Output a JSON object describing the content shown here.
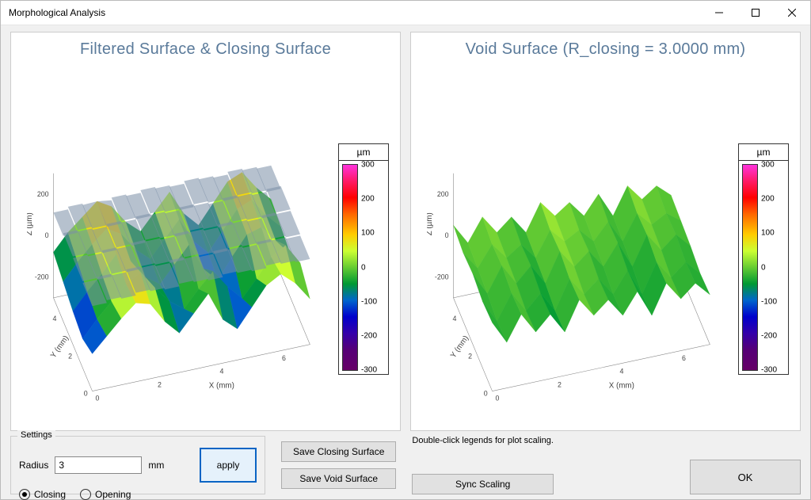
{
  "window": {
    "title": "Morphological Analysis"
  },
  "plots": {
    "left": {
      "title": "Filtered Surface & Closing Surface",
      "xlabel": "X (mm)",
      "ylabel": "Y (mm)",
      "zlabel": "Z (µm)",
      "x_ticks": [
        0,
        2,
        4,
        6
      ],
      "x_range": [
        0,
        7
      ],
      "y_ticks": [
        0,
        2,
        4
      ],
      "y_range": [
        0,
        5
      ],
      "z_ticks": [
        -200,
        0,
        200
      ],
      "z_range": [
        -300,
        300
      ],
      "surface_colors": [
        "#660066",
        "#550077",
        "#3300aa",
        "#0000cc",
        "#0066cc",
        "#009933",
        "#66cc33",
        "#ccff33",
        "#ffcc00",
        "#ff6600",
        "#ff0000",
        "#ff1a66",
        "#ff33dd"
      ],
      "overlay_closing_color": "#7a8ea6",
      "overlay_closing_opacity": 0.55,
      "grid_z_slices": [
        {
          "y": 0,
          "z": [
            -120,
            -50,
            20,
            80,
            60,
            -40,
            -110,
            -30,
            50,
            -90,
            -150,
            -60,
            30,
            70,
            10,
            -80
          ]
        },
        {
          "y": 1,
          "z": [
            -160,
            -80,
            -10,
            60,
            100,
            10,
            -70,
            -120,
            -40,
            30,
            -60,
            -130,
            -50,
            40,
            80,
            -20
          ]
        },
        {
          "y": 2,
          "z": [
            -140,
            -60,
            10,
            90,
            40,
            -50,
            -100,
            -20,
            60,
            -70,
            -140,
            -40,
            50,
            70,
            -10,
            -90
          ]
        },
        {
          "y": 3,
          "z": [
            -110,
            -30,
            40,
            100,
            60,
            -30,
            -90,
            -10,
            70,
            -50,
            -120,
            -30,
            60,
            90,
            0,
            -70
          ]
        },
        {
          "y": 4,
          "z": [
            -80,
            0,
            60,
            120,
            80,
            -10,
            -70,
            10,
            90,
            -30,
            -100,
            -10,
            80,
            110,
            20,
            -50
          ]
        }
      ]
    },
    "right": {
      "title": "Void Surface (R_closing = 3.0000 mm)",
      "xlabel": "X (mm)",
      "ylabel": "Y (mm)",
      "zlabel": "Z (µm)",
      "x_ticks": [
        0,
        2,
        4,
        6
      ],
      "x_range": [
        0,
        7
      ],
      "y_ticks": [
        0,
        2,
        4
      ],
      "y_range": [
        0,
        5
      ],
      "z_ticks": [
        -200,
        0,
        200
      ],
      "z_range": [
        -300,
        300
      ],
      "surface_colors": [
        "#660066",
        "#550077",
        "#3300aa",
        "#0000cc",
        "#0066cc",
        "#009933",
        "#66cc33",
        "#ccff33",
        "#ffcc00",
        "#ff6600",
        "#ff0000",
        "#ff1a66",
        "#ff33dd"
      ],
      "dominant_range": [
        -100,
        50
      ],
      "grid_z_slices": [
        {
          "y": 0,
          "z": [
            30,
            -80,
            40,
            -60,
            10,
            -90,
            50,
            -40,
            20,
            -70,
            30,
            -100,
            40,
            -50,
            10,
            -60
          ]
        },
        {
          "y": 1,
          "z": [
            20,
            -90,
            30,
            -70,
            0,
            -100,
            40,
            -50,
            10,
            -80,
            20,
            -110,
            30,
            -60,
            0,
            -70
          ]
        },
        {
          "y": 2,
          "z": [
            40,
            -70,
            50,
            -50,
            20,
            -80,
            60,
            -30,
            30,
            -60,
            40,
            -90,
            50,
            -40,
            20,
            -50
          ]
        },
        {
          "y": 3,
          "z": [
            30,
            -60,
            40,
            -40,
            10,
            -70,
            50,
            -20,
            20,
            -50,
            30,
            -80,
            40,
            -30,
            10,
            -40
          ]
        },
        {
          "y": 4,
          "z": [
            50,
            -50,
            60,
            -30,
            30,
            -60,
            70,
            -10,
            40,
            -40,
            50,
            -70,
            60,
            -20,
            30,
            -30
          ]
        }
      ]
    },
    "colorbar": {
      "unit": "µm",
      "ticks": [
        300,
        200,
        100,
        0,
        -100,
        -200,
        -300
      ],
      "range": [
        -300,
        300
      ],
      "stops": [
        {
          "pct": 0,
          "color": "#ff33dd"
        },
        {
          "pct": 8,
          "color": "#ff1a66"
        },
        {
          "pct": 16,
          "color": "#ff0000"
        },
        {
          "pct": 24,
          "color": "#ff6600"
        },
        {
          "pct": 34,
          "color": "#ffcc00"
        },
        {
          "pct": 42,
          "color": "#ccff33"
        },
        {
          "pct": 50,
          "color": "#66cc33"
        },
        {
          "pct": 58,
          "color": "#009933"
        },
        {
          "pct": 66,
          "color": "#0066cc"
        },
        {
          "pct": 74,
          "color": "#0000cc"
        },
        {
          "pct": 82,
          "color": "#3300aa"
        },
        {
          "pct": 90,
          "color": "#550077"
        },
        {
          "pct": 100,
          "color": "#660066"
        }
      ]
    }
  },
  "settings": {
    "legend": "Settings",
    "radius_label": "Radius",
    "radius_value": "3",
    "radius_unit": "mm",
    "apply_label": "apply",
    "mode": "closing",
    "closing_label": "Closing",
    "opening_label": "Opening"
  },
  "buttons": {
    "save_closing": "Save Closing Surface",
    "save_void": "Save Void Surface",
    "sync_scaling": "Sync Scaling",
    "ok": "OK"
  },
  "hint": "Double-click legends for plot scaling."
}
